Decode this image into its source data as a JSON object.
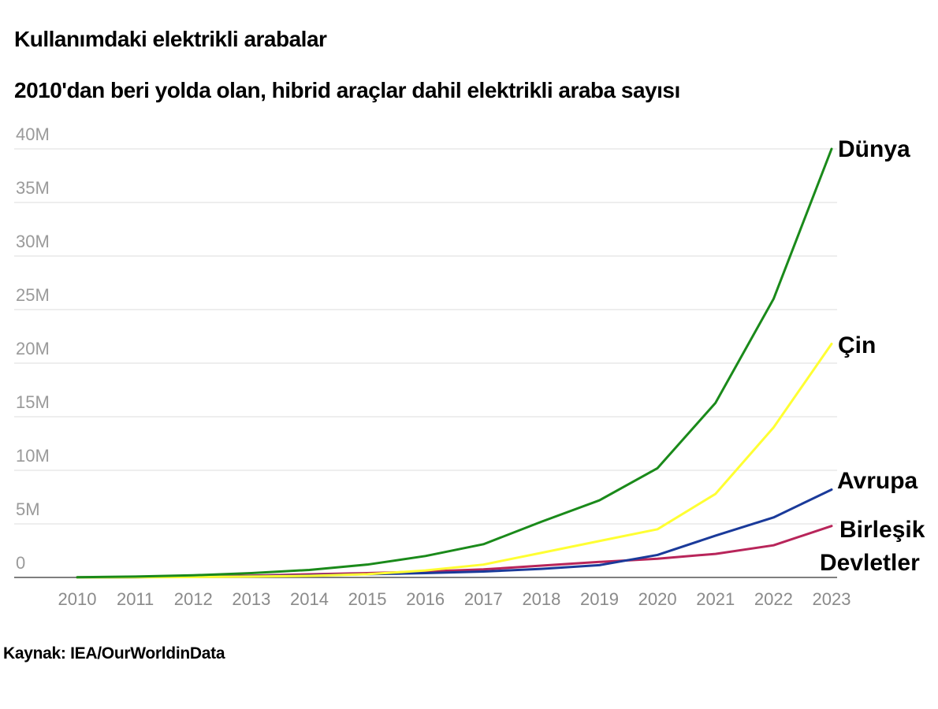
{
  "title": "Kullanımdaki elektrikli arabalar",
  "subtitle": "2010'dan beri yolda olan, hibrid araçlar dahil elektrikli araba sayısı",
  "source": "Kaynak: IEA/OurWorldinData",
  "chart_data": {
    "type": "line",
    "x": [
      "2010",
      "2011",
      "2012",
      "2013",
      "2014",
      "2015",
      "2016",
      "2017",
      "2018",
      "2019",
      "2020",
      "2021",
      "2022",
      "2023"
    ],
    "ylim": [
      0,
      40000000
    ],
    "yticks": [
      0,
      5000000,
      10000000,
      15000000,
      20000000,
      25000000,
      30000000,
      35000000,
      40000000
    ],
    "ytick_labels": [
      "0",
      "5M",
      "10M",
      "15M",
      "20M",
      "25M",
      "30M",
      "35M",
      "40M"
    ],
    "grid": true,
    "legend": "direct labels at line ends",
    "series": [
      {
        "name": "Dünya",
        "color": "#1a8a1a",
        "values": [
          20000,
          80000,
          200000,
          400000,
          700000,
          1200000,
          2000000,
          3100000,
          5200000,
          7200000,
          10200000,
          16300000,
          26000000,
          40000000
        ]
      },
      {
        "name": "Çin",
        "color": "#ffff33",
        "values": [
          5000,
          15000,
          40000,
          80000,
          150000,
          300000,
          650000,
          1200000,
          2300000,
          3400000,
          4500000,
          7800000,
          14000000,
          21800000
        ]
      },
      {
        "name": "Avrupa",
        "color": "#1a3a9a",
        "values": [
          5000,
          20000,
          60000,
          110000,
          190000,
          300000,
          400000,
          550000,
          800000,
          1150000,
          2100000,
          3900000,
          5600000,
          8200000
        ]
      },
      {
        "name": "Birleşik Devletler",
        "label_lines": [
          "Birleşik",
          "Devletler"
        ],
        "color": "#b8255a",
        "values": [
          5000,
          25000,
          80000,
          170000,
          290000,
          400000,
          550000,
          750000,
          1100000,
          1450000,
          1750000,
          2200000,
          3000000,
          4800000
        ]
      }
    ]
  }
}
